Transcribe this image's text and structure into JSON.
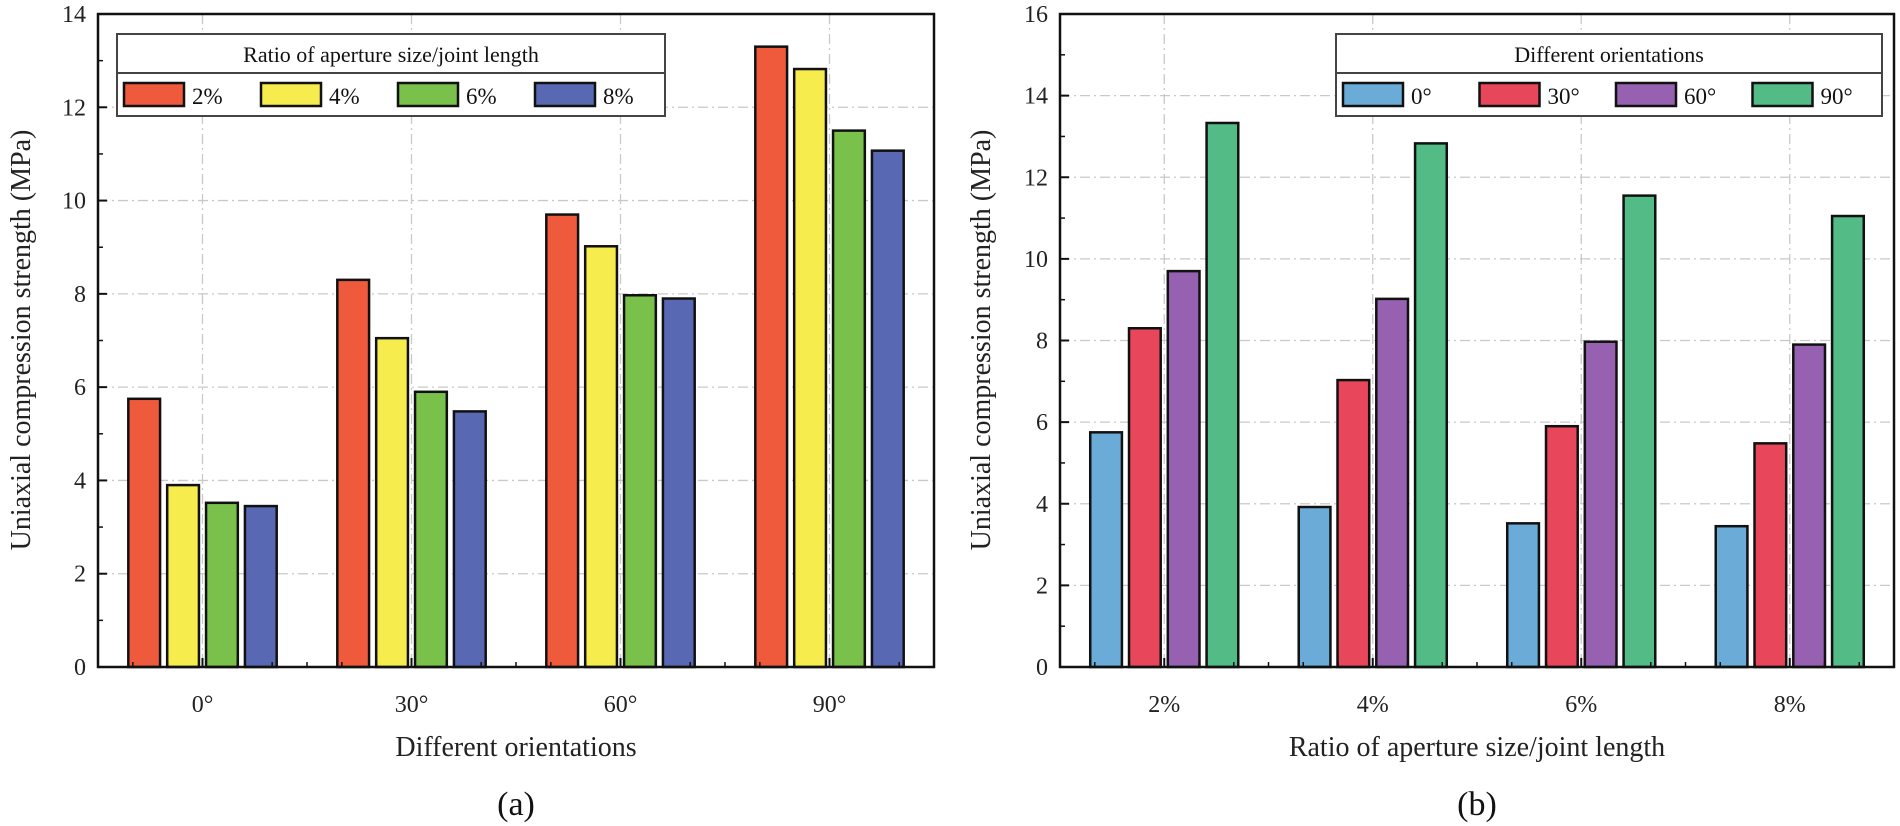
{
  "chart_data": [
    {
      "type": "bar",
      "panel_label": "(a)",
      "xlabel": "Different orientations",
      "ylabel": "Uniaxial compression strength (MPa)",
      "ylim": [
        0,
        14
      ],
      "yticks": [
        0,
        2,
        4,
        6,
        8,
        10,
        12,
        14
      ],
      "grid": true,
      "categories": [
        "0°",
        "30°",
        "60°",
        "90°"
      ],
      "legend": {
        "title": "Ratio of aperture size/joint length",
        "position": "top-left"
      },
      "series": [
        {
          "name": "2%",
          "color": "#f05a3c",
          "values": [
            5.75,
            8.3,
            9.7,
            13.3
          ]
        },
        {
          "name": "4%",
          "color": "#f7ec4d",
          "values": [
            3.9,
            7.05,
            9.02,
            12.82
          ]
        },
        {
          "name": "6%",
          "color": "#7ac14b",
          "values": [
            3.52,
            5.9,
            7.97,
            11.5
          ]
        },
        {
          "name": "8%",
          "color": "#5868b2",
          "values": [
            3.45,
            5.48,
            7.9,
            11.07
          ]
        }
      ]
    },
    {
      "type": "bar",
      "panel_label": "(b)",
      "xlabel": "Ratio of aperture size/joint length",
      "ylabel": "Uniaxial compression strength (MPa)",
      "ylim": [
        0,
        16
      ],
      "yticks": [
        0,
        2,
        4,
        6,
        8,
        10,
        12,
        14,
        16
      ],
      "grid": true,
      "categories": [
        "2%",
        "4%",
        "6%",
        "8%"
      ],
      "legend": {
        "title": "Different orientations",
        "position": "top-right"
      },
      "series": [
        {
          "name": "0°",
          "color": "#6aabd8",
          "values": [
            5.75,
            3.92,
            3.52,
            3.45
          ]
        },
        {
          "name": "30°",
          "color": "#e8465a",
          "values": [
            8.3,
            7.03,
            5.9,
            5.48
          ]
        },
        {
          "name": "60°",
          "color": "#9561b0",
          "values": [
            9.7,
            9.02,
            7.97,
            7.9
          ]
        },
        {
          "name": "90°",
          "color": "#52bb86",
          "values": [
            13.33,
            12.83,
            11.55,
            11.05
          ]
        }
      ]
    }
  ]
}
